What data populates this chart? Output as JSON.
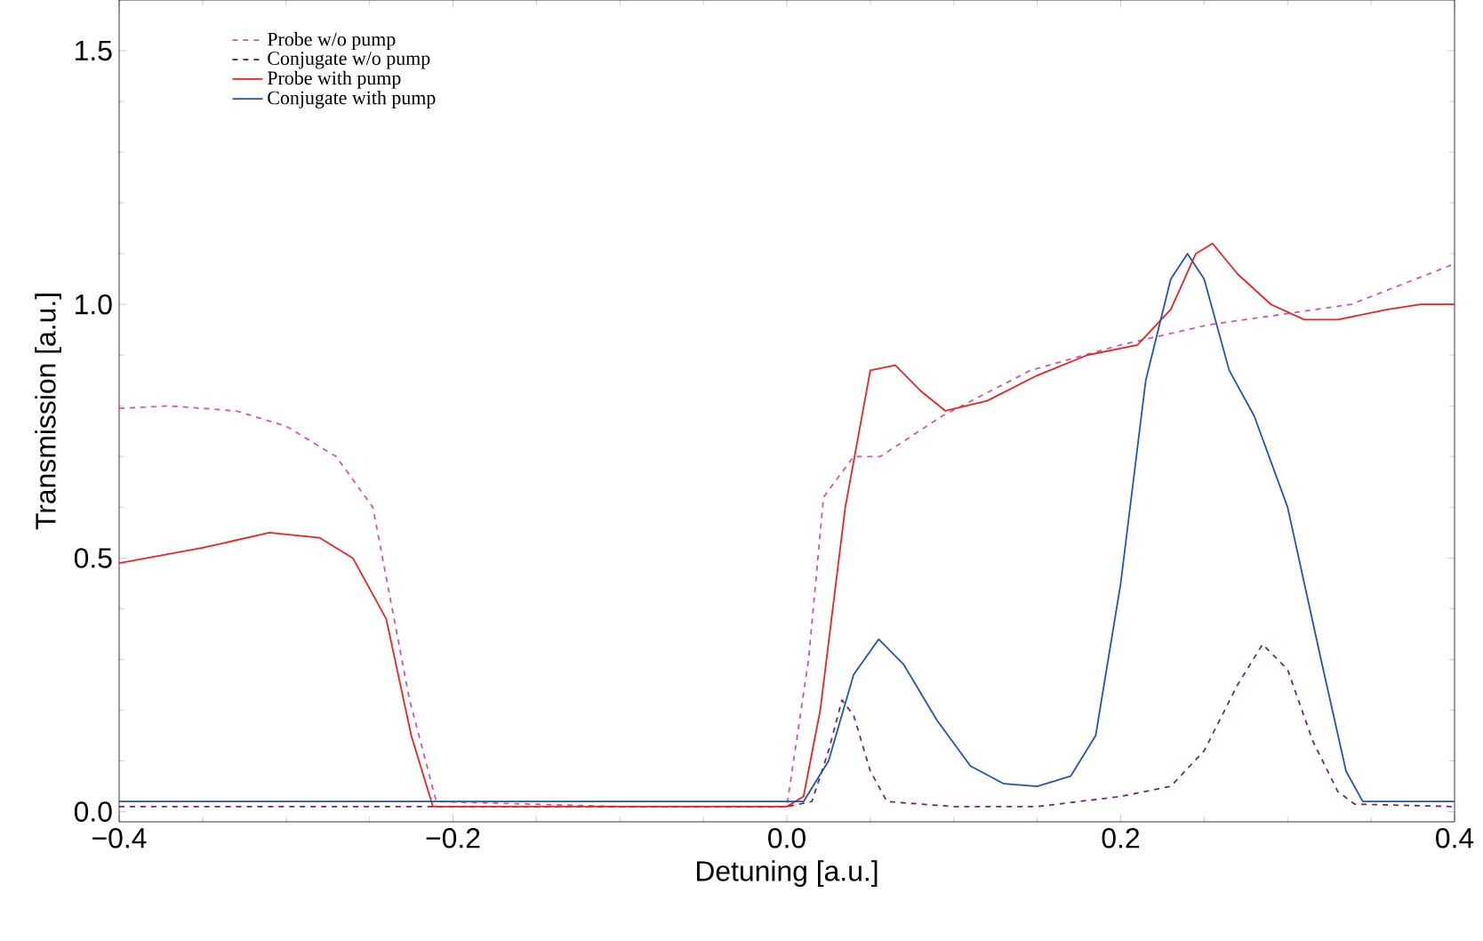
{
  "chart_data": {
    "type": "line",
    "xlabel": "Detuning [a.u.]",
    "ylabel": "Transmission [a.u.]",
    "xlim": [
      -0.4,
      0.4
    ],
    "ylim": [
      -0.02,
      1.6
    ],
    "xticks": [
      {
        "value": -0.4,
        "label": "−0.4"
      },
      {
        "value": -0.2,
        "label": "−0.2"
      },
      {
        "value": 0.0,
        "label": "0.0"
      },
      {
        "value": 0.2,
        "label": "0.2"
      },
      {
        "value": 0.4,
        "label": "0.4"
      }
    ],
    "yticks": [
      {
        "value": 0.0,
        "label": "0.0"
      },
      {
        "value": 0.5,
        "label": "0.5"
      },
      {
        "value": 1.0,
        "label": "1.0"
      },
      {
        "value": 1.5,
        "label": "1.5"
      }
    ],
    "grid": false,
    "legend": "top left",
    "marker": "none",
    "series": [
      {
        "name": "Probe w/o pump",
        "color": "#cc55bb",
        "line_style": "dashed",
        "x": [
          -0.4,
          -0.37,
          -0.33,
          -0.3,
          -0.27,
          -0.248,
          -0.226,
          -0.21,
          -0.1,
          0.0,
          0.013,
          0.022,
          0.04,
          0.056,
          0.093,
          0.146,
          0.2,
          0.253,
          0.296,
          0.338,
          0.4
        ],
        "values": [
          0.795,
          0.8,
          0.79,
          0.76,
          0.7,
          0.6,
          0.22,
          0.02,
          0.01,
          0.01,
          0.3,
          0.62,
          0.7,
          0.7,
          0.78,
          0.87,
          0.92,
          0.96,
          0.98,
          1.0,
          1.08
        ]
      },
      {
        "name": "Conjugate w/o pump",
        "color": "#6a2a7a",
        "line_style": "dashed",
        "x": [
          -0.4,
          -0.2,
          0.0,
          0.015,
          0.025,
          0.033,
          0.04,
          0.05,
          0.06,
          0.1,
          0.15,
          0.2,
          0.23,
          0.25,
          0.27,
          0.285,
          0.3,
          0.315,
          0.33,
          0.34,
          0.4
        ],
        "values": [
          0.01,
          0.01,
          0.01,
          0.02,
          0.12,
          0.22,
          0.19,
          0.08,
          0.02,
          0.01,
          0.01,
          0.03,
          0.05,
          0.12,
          0.25,
          0.33,
          0.28,
          0.14,
          0.04,
          0.015,
          0.01
        ]
      },
      {
        "name": "Probe with pump",
        "color": "#ee2222",
        "line_style": "solid",
        "x": [
          -0.4,
          -0.35,
          -0.31,
          -0.28,
          -0.26,
          -0.24,
          -0.225,
          -0.212,
          -0.1,
          0.0,
          0.01,
          0.02,
          0.035,
          0.05,
          0.065,
          0.08,
          0.095,
          0.12,
          0.15,
          0.18,
          0.21,
          0.23,
          0.245,
          0.255,
          0.27,
          0.29,
          0.31,
          0.33,
          0.36,
          0.38,
          0.4
        ],
        "values": [
          0.49,
          0.52,
          0.55,
          0.54,
          0.5,
          0.38,
          0.15,
          0.01,
          0.01,
          0.01,
          0.03,
          0.2,
          0.6,
          0.87,
          0.88,
          0.83,
          0.79,
          0.81,
          0.86,
          0.9,
          0.92,
          0.99,
          1.1,
          1.12,
          1.06,
          1.0,
          0.97,
          0.97,
          0.99,
          1.0,
          1.0
        ]
      },
      {
        "name": "Conjugate with pump",
        "color": "#2255aa",
        "line_style": "solid",
        "x": [
          -0.4,
          -0.2,
          0.0,
          0.01,
          0.025,
          0.04,
          0.055,
          0.07,
          0.09,
          0.11,
          0.13,
          0.15,
          0.17,
          0.185,
          0.2,
          0.215,
          0.23,
          0.24,
          0.25,
          0.265,
          0.28,
          0.3,
          0.32,
          0.335,
          0.345,
          0.4
        ],
        "values": [
          0.02,
          0.02,
          0.02,
          0.02,
          0.1,
          0.27,
          0.34,
          0.29,
          0.18,
          0.09,
          0.055,
          0.05,
          0.07,
          0.15,
          0.45,
          0.85,
          1.05,
          1.1,
          1.05,
          0.87,
          0.78,
          0.6,
          0.3,
          0.08,
          0.02,
          0.02
        ]
      }
    ]
  }
}
